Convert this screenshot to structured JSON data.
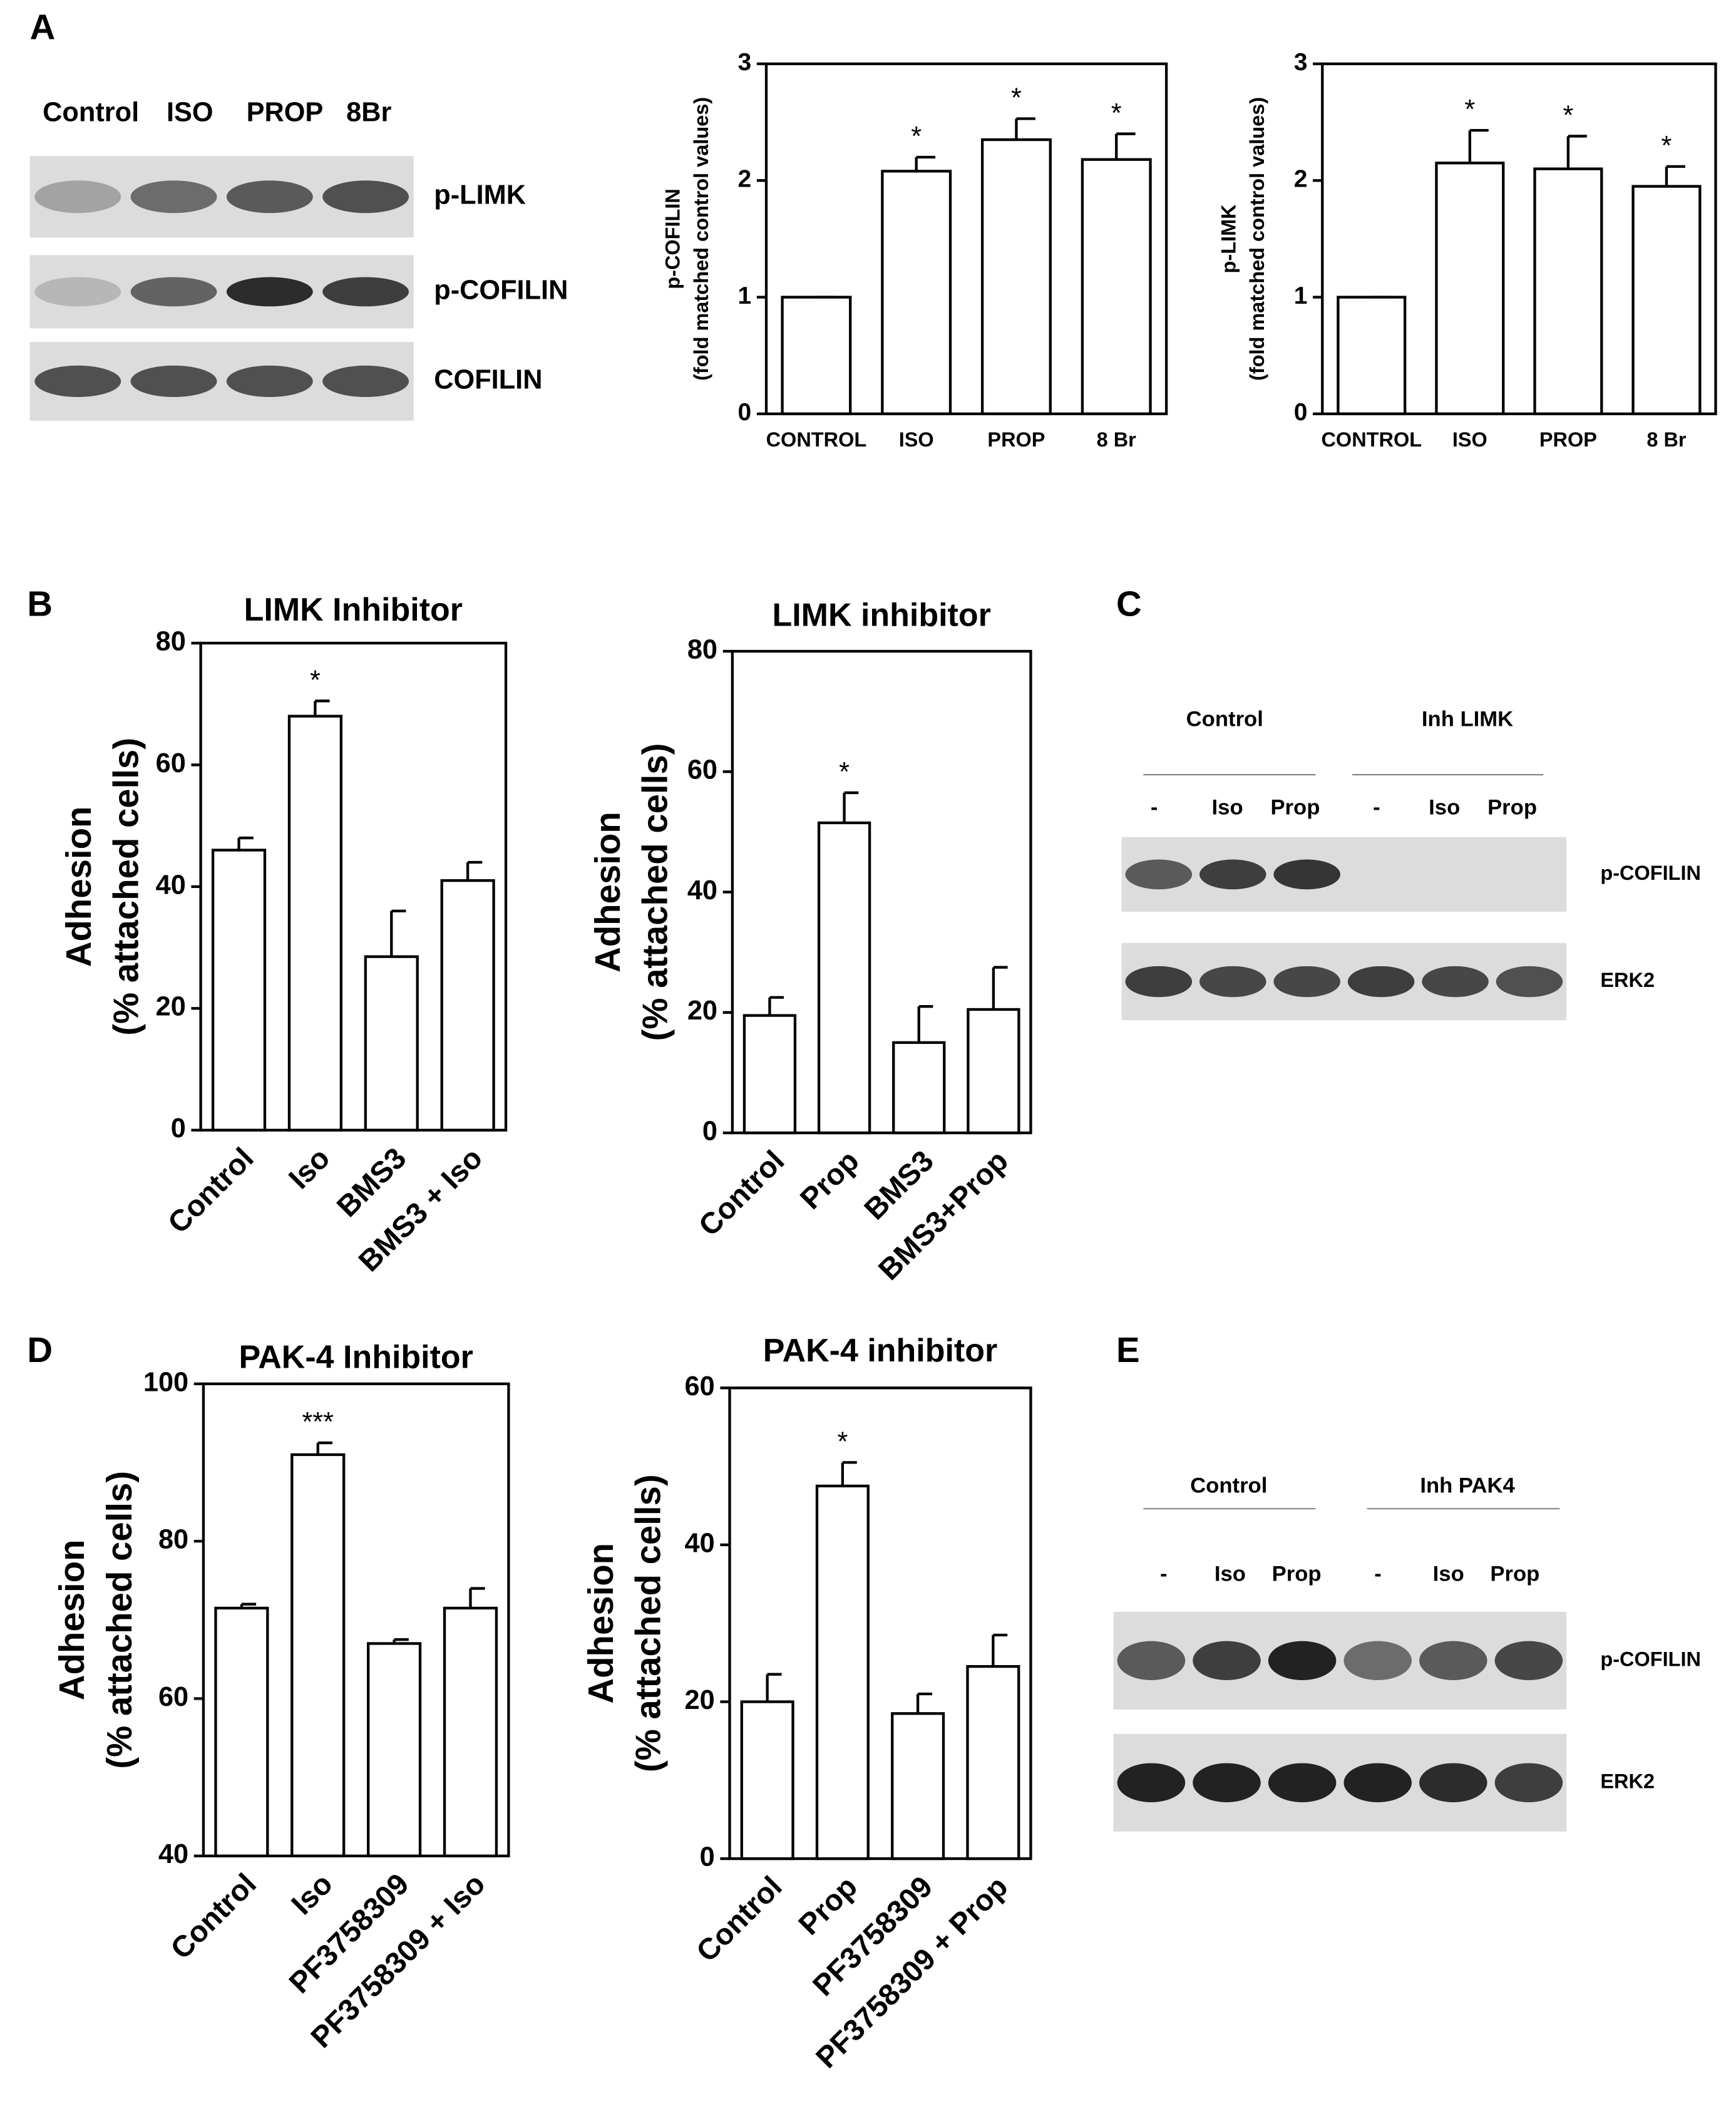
{
  "panels": [
    "A",
    "B",
    "C",
    "D",
    "E"
  ],
  "blots": [
    {
      "lanes": [
        "Control",
        "ISO",
        "PROP",
        "8Br"
      ],
      "rows": [
        "p-LIMK",
        "p-COFILIN",
        "COFILIN"
      ]
    },
    {
      "groups": [
        "Control",
        "Inh LIMK"
      ],
      "lanes": [
        "-",
        "Iso",
        "Prop",
        "-",
        "Iso",
        "Prop"
      ],
      "rows": [
        "p-COFILIN",
        "ERK2"
      ]
    },
    {
      "groups": [
        "Control",
        "Inh PAK4"
      ],
      "lanes": [
        "-",
        "Iso",
        "Prop",
        "-",
        "Iso",
        "Prop"
      ],
      "rows": [
        "p-COFILIN",
        "ERK2"
      ]
    }
  ],
  "chart_data": [
    {
      "type": "bar",
      "ylabel": [
        "p-COFILIN",
        "(fold matched control values)"
      ],
      "categories": [
        "CONTROL",
        "ISO",
        "PROP",
        "8 Br"
      ],
      "values": [
        1,
        2.08,
        2.35,
        2.18
      ],
      "errors": [
        0,
        0.12,
        0.18,
        0.22
      ],
      "ylim": [
        0,
        3
      ],
      "yticks": [
        0,
        1,
        2,
        3
      ],
      "annotations": [
        {
          "text": "*",
          "x": "ISO"
        },
        {
          "text": "*",
          "x": "PROP"
        },
        {
          "text": "*",
          "x": "8 Br"
        }
      ],
      "color": "#ffffff"
    },
    {
      "type": "bar",
      "ylabel": [
        "p-LIMK",
        "(fold matched control values)"
      ],
      "categories": [
        "CONTROL",
        "ISO",
        "PROP",
        "8 Br"
      ],
      "values": [
        1,
        2.15,
        2.1,
        1.95
      ],
      "errors": [
        0,
        0.28,
        0.28,
        0.17
      ],
      "ylim": [
        0,
        3
      ],
      "yticks": [
        0,
        1,
        2,
        3
      ],
      "annotations": [
        {
          "text": "*",
          "x": "ISO"
        },
        {
          "text": "*",
          "x": "PROP"
        },
        {
          "text": "*",
          "x": "8 Br"
        }
      ],
      "color": "#ffffff"
    },
    {
      "type": "bar",
      "title": "LIMK Inhibitor",
      "ylabel": [
        "Adhesion",
        "(% attached cells)"
      ],
      "categories": [
        "Control",
        "Iso",
        "BMS3",
        "BMS3 + Iso"
      ],
      "values": [
        46,
        68,
        28.5,
        41
      ],
      "errors": [
        2,
        2.5,
        7.5,
        3
      ],
      "ylim": [
        0,
        80
      ],
      "yticks": [
        0,
        20,
        40,
        60,
        80
      ],
      "annotations": [
        {
          "text": "*",
          "x": "Iso"
        }
      ],
      "color": "#ffffff"
    },
    {
      "type": "bar",
      "title": "LIMK inhibitor",
      "ylabel": [
        "Adhesion",
        "(% attached cells)"
      ],
      "categories": [
        "Control",
        "Prop",
        "BMS3",
        "BMS3+Prop"
      ],
      "values": [
        19.5,
        51.5,
        15,
        20.5
      ],
      "errors": [
        3,
        5,
        6,
        7
      ],
      "ylim": [
        0,
        80
      ],
      "yticks": [
        0,
        20,
        40,
        60,
        80
      ],
      "annotations": [
        {
          "text": "*",
          "x": "Prop"
        }
      ],
      "color": "#ffffff"
    },
    {
      "type": "bar",
      "title": "PAK-4 Inhibitor",
      "ylabel": [
        "Adhesion",
        "(% attached cells)"
      ],
      "categories": [
        "Control",
        "Iso",
        "PF3758309",
        "PF3758309 + Iso"
      ],
      "values": [
        71.5,
        91,
        67,
        71.5
      ],
      "errors": [
        0.5,
        1.5,
        0.5,
        2.5
      ],
      "ylim": [
        40,
        100
      ],
      "yticks": [
        40,
        60,
        80,
        100
      ],
      "annotations": [
        {
          "text": "***",
          "x": "Iso"
        }
      ],
      "color": "#ffffff"
    },
    {
      "type": "bar",
      "title": "PAK-4 inhibitor",
      "ylabel": [
        "Adhesion",
        "(% attached cells)"
      ],
      "categories": [
        "Control",
        "Prop",
        "PF3758309",
        "PF3758309 + Prop"
      ],
      "values": [
        20,
        47.5,
        18.5,
        24.5
      ],
      "errors": [
        3.5,
        3,
        2.5,
        4
      ],
      "ylim": [
        0,
        60
      ],
      "yticks": [
        0,
        20,
        40,
        60
      ],
      "annotations": [
        {
          "text": "*",
          "x": "Prop"
        }
      ],
      "color": "#ffffff"
    }
  ]
}
